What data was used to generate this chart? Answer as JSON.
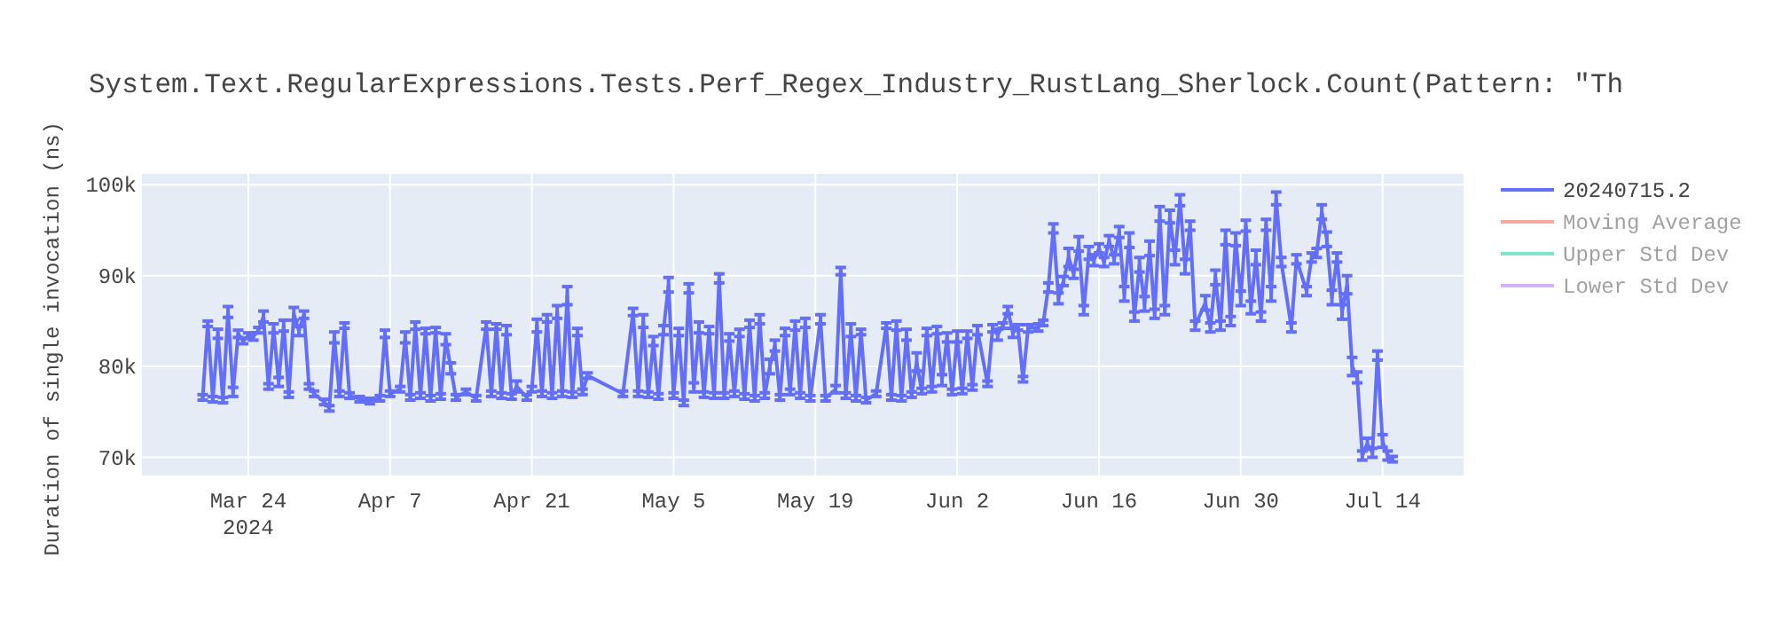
{
  "chart_data": {
    "type": "line",
    "title": "System.Text.RegularExpressions.Tests.Perf_Regex_Industry_RustLang_Sherlock.Count(Pattern: \"Th",
    "ylabel": "Duration of single invocation (ns)",
    "xlim": [
      "2024-03-13T12:00",
      "2024-07-22"
    ],
    "ylim": [
      68000,
      101200
    ],
    "xticks": [
      {
        "value": "2024-03-24",
        "label": "Mar 24\n2024"
      },
      {
        "value": "2024-04-07",
        "label": "Apr 7"
      },
      {
        "value": "2024-04-21",
        "label": "Apr 21"
      },
      {
        "value": "2024-05-05",
        "label": "May 5"
      },
      {
        "value": "2024-05-19",
        "label": "May 19"
      },
      {
        "value": "2024-06-02",
        "label": "Jun 2"
      },
      {
        "value": "2024-06-16",
        "label": "Jun 16"
      },
      {
        "value": "2024-06-30",
        "label": "Jun 30"
      },
      {
        "value": "2024-07-14",
        "label": "Jul 14"
      }
    ],
    "yticks": [
      {
        "value": 70000,
        "label": "70k"
      },
      {
        "value": 80000,
        "label": "80k"
      },
      {
        "value": 90000,
        "label": "90k"
      },
      {
        "value": 100000,
        "label": "100k"
      }
    ],
    "grid": true,
    "legend": "top right",
    "line_style": "solid",
    "series": [
      {
        "name": "20240715.2",
        "color": "#636efa",
        "x": [
          "2024-03-19T12:00",
          "2024-03-20T00:00",
          "2024-03-20T12:00",
          "2024-03-21T00:00",
          "2024-03-21T12:00",
          "2024-03-22T00:00",
          "2024-03-22T12:00",
          "2024-03-23T00:00",
          "2024-03-23T12:00",
          "2024-03-24T00:00",
          "2024-03-24T12:00",
          "2024-03-25T00:00",
          "2024-03-25T12:00",
          "2024-03-26T00:00",
          "2024-03-26T12:00",
          "2024-03-27T00:00",
          "2024-03-27T12:00",
          "2024-03-28T00:00",
          "2024-03-28T12:00",
          "2024-03-29T00:00",
          "2024-03-29T12:00",
          "2024-03-30T00:00",
          "2024-03-30T12:00",
          "2024-03-31T12:00",
          "2024-04-01T00:00",
          "2024-04-01T12:00",
          "2024-04-02T00:00",
          "2024-04-02T12:00",
          "2024-04-03T00:00",
          "2024-04-04T00:00",
          "2024-04-05T00:00",
          "2024-04-06T00:00",
          "2024-04-06T12:00",
          "2024-04-07T00:00",
          "2024-04-08T00:00",
          "2024-04-08T12:00",
          "2024-04-09T00:00",
          "2024-04-09T12:00",
          "2024-04-10T00:00",
          "2024-04-10T12:00",
          "2024-04-11T00:00",
          "2024-04-11T12:00",
          "2024-04-12T00:00",
          "2024-04-12T12:00",
          "2024-04-13T00:00",
          "2024-04-13T12:00",
          "2024-04-14T12:00",
          "2024-04-15T12:00",
          "2024-04-16T12:00",
          "2024-04-17T00:00",
          "2024-04-17T12:00",
          "2024-04-18T00:00",
          "2024-04-18T12:00",
          "2024-04-19T00:00",
          "2024-04-19T12:00",
          "2024-04-20T12:00",
          "2024-04-21T00:00",
          "2024-04-21T12:00",
          "2024-04-22T00:00",
          "2024-04-22T12:00",
          "2024-04-23T00:00",
          "2024-04-23T12:00",
          "2024-04-24T00:00",
          "2024-04-24T12:00",
          "2024-04-25T00:00",
          "2024-04-25T12:00",
          "2024-04-26T00:00",
          "2024-04-26T12:00",
          "2024-04-30T00:00",
          "2024-05-01T00:00",
          "2024-05-01T12:00",
          "2024-05-02T00:00",
          "2024-05-02T12:00",
          "2024-05-03T00:00",
          "2024-05-03T12:00",
          "2024-05-04T00:00",
          "2024-05-04T12:00",
          "2024-05-05T00:00",
          "2024-05-05T12:00",
          "2024-05-06T00:00",
          "2024-05-06T12:00",
          "2024-05-07T00:00",
          "2024-05-07T12:00",
          "2024-05-08T00:00",
          "2024-05-08T12:00",
          "2024-05-09T00:00",
          "2024-05-09T12:00",
          "2024-05-10T00:00",
          "2024-05-10T12:00",
          "2024-05-11T00:00",
          "2024-05-11T12:00",
          "2024-05-12T00:00",
          "2024-05-12T12:00",
          "2024-05-13T00:00",
          "2024-05-13T12:00",
          "2024-05-14T00:00",
          "2024-05-14T12:00",
          "2024-05-15T00:00",
          "2024-05-15T12:00",
          "2024-05-16T00:00",
          "2024-05-16T12:00",
          "2024-05-17T00:00",
          "2024-05-17T12:00",
          "2024-05-18T00:00",
          "2024-05-18T12:00",
          "2024-05-19T12:00",
          "2024-05-20T00:00",
          "2024-05-21T00:00",
          "2024-05-21T12:00",
          "2024-05-22T00:00",
          "2024-05-22T12:00",
          "2024-05-23T00:00",
          "2024-05-23T12:00",
          "2024-05-24T00:00",
          "2024-05-25T00:00",
          "2024-05-26T00:00",
          "2024-05-26T12:00",
          "2024-05-27T00:00",
          "2024-05-27T12:00",
          "2024-05-28T00:00",
          "2024-05-28T12:00",
          "2024-05-29T00:00",
          "2024-05-29T12:00",
          "2024-05-30T00:00",
          "2024-05-30T12:00",
          "2024-05-31T00:00",
          "2024-05-31T12:00",
          "2024-06-01T00:00",
          "2024-06-01T12:00",
          "2024-06-02T00:00",
          "2024-06-02T12:00",
          "2024-06-03T00:00",
          "2024-06-03T12:00",
          "2024-06-04T00:00",
          "2024-06-05T00:00",
          "2024-06-05T12:00",
          "2024-06-06T00:00",
          "2024-06-06T12:00",
          "2024-06-07T00:00",
          "2024-06-07T12:00",
          "2024-06-08T00:00",
          "2024-06-08T12:00",
          "2024-06-09T00:00",
          "2024-06-10T00:00",
          "2024-06-10T12:00",
          "2024-06-11T00:00",
          "2024-06-11T12:00",
          "2024-06-12T00:00",
          "2024-06-12T12:00",
          "2024-06-13T00:00",
          "2024-06-13T12:00",
          "2024-06-14T00:00",
          "2024-06-14T12:00",
          "2024-06-15T00:00",
          "2024-06-15T12:00",
          "2024-06-16T00:00",
          "2024-06-16T12:00",
          "2024-06-17T00:00",
          "2024-06-17T12:00",
          "2024-06-18T00:00",
          "2024-06-18T12:00",
          "2024-06-19T00:00",
          "2024-06-19T12:00",
          "2024-06-20T00:00",
          "2024-06-20T12:00",
          "2024-06-21T00:00",
          "2024-06-21T12:00",
          "2024-06-22T00:00",
          "2024-06-22T12:00",
          "2024-06-23T00:00",
          "2024-06-23T12:00",
          "2024-06-24T00:00",
          "2024-06-24T12:00",
          "2024-06-25T00:00",
          "2024-06-25T12:00",
          "2024-06-26T12:00",
          "2024-06-27T00:00",
          "2024-06-27T12:00",
          "2024-06-28T00:00",
          "2024-06-28T12:00",
          "2024-06-29T00:00",
          "2024-06-29T12:00",
          "2024-06-30T00:00",
          "2024-06-30T12:00",
          "2024-07-01T00:00",
          "2024-07-01T12:00",
          "2024-07-02T00:00",
          "2024-07-02T12:00",
          "2024-07-03T00:00",
          "2024-07-03T12:00",
          "2024-07-04T00:00",
          "2024-07-05T00:00",
          "2024-07-05T12:00",
          "2024-07-06T12:00",
          "2024-07-07T00:00",
          "2024-07-07T12:00",
          "2024-07-08T00:00",
          "2024-07-08T12:00",
          "2024-07-09T00:00",
          "2024-07-09T12:00",
          "2024-07-10T00:00",
          "2024-07-10T12:00",
          "2024-07-11T00:00",
          "2024-07-11T12:00",
          "2024-07-12T00:00",
          "2024-07-12T12:00",
          "2024-07-13T00:00",
          "2024-07-13T12:00",
          "2024-07-14T00:00",
          "2024-07-14T12:00",
          "2024-07-15T00:00"
        ],
        "values": [
          76600,
          84700,
          76400,
          83600,
          76300,
          86000,
          77200,
          83600,
          82800,
          83400,
          83300,
          84000,
          85500,
          77800,
          84200,
          78300,
          84500,
          76900,
          85800,
          83900,
          85700,
          77800,
          77000,
          76100,
          75400,
          83200,
          77000,
          84500,
          76800,
          76400,
          76200,
          76500,
          83600,
          77000,
          77500,
          83200,
          76600,
          84500,
          76800,
          83900,
          76500,
          84000,
          76700,
          83000,
          79800,
          76600,
          77200,
          76500,
          84500,
          77000,
          84400,
          76800,
          84000,
          76700,
          77800,
          76600,
          77500,
          84500,
          77000,
          85300,
          76800,
          86000,
          77000,
          87800,
          76900,
          83800,
          77200,
          79000,
          77000,
          86000,
          77000,
          85000,
          76900,
          82800,
          76700,
          84000,
          89000,
          76800,
          83800,
          76000,
          88600,
          77700,
          84300,
          76900,
          84000,
          76800,
          89700,
          76800,
          83200,
          77000,
          83700,
          76700,
          84700,
          76500,
          85200,
          76800,
          80000,
          82300,
          76600,
          83800,
          77200,
          84500,
          76800,
          84800,
          76500,
          85200,
          76500,
          77500,
          90500,
          76800,
          84000,
          76500,
          83800,
          76300,
          77000,
          84500,
          76600,
          84500,
          76500,
          83500,
          76900,
          80500,
          77300,
          83800,
          77500,
          84000,
          78500,
          83200,
          77200,
          83300,
          77300,
          83500,
          77700,
          84000,
          78100,
          84200,
          83500,
          84500,
          86200,
          83700,
          84300,
          78600,
          84200,
          84300,
          84800,
          88700,
          95200,
          87500,
          89400,
          92000,
          90200,
          93500,
          86200,
          92500,
          91700,
          93000,
          91500,
          93800,
          91800,
          94800,
          88000,
          93900,
          85500,
          91200,
          86900,
          93000,
          85800,
          96800,
          86200,
          96500,
          92000,
          98300,
          91000,
          95500,
          84500,
          87000,
          84300,
          89800,
          84500,
          94200,
          85000,
          94000,
          87500,
          95500,
          86500,
          92000,
          85500,
          95600,
          88000,
          98500,
          91500,
          84300,
          91800,
          88300,
          92000,
          92500,
          97000,
          94000,
          87600,
          92000,
          86000,
          89000,
          80000,
          78800,
          70200,
          71500,
          70500,
          81200,
          71800,
          70200,
          69800
        ],
        "errors": [
          300,
          300,
          300,
          500,
          300,
          600,
          500,
          400,
          300,
          300,
          400,
          300,
          600,
          300,
          500,
          500,
          600,
          300,
          700,
          500,
          400,
          300,
          300,
          300,
          300,
          600,
          300,
          300,
          300,
          300,
          300,
          300,
          400,
          300,
          300,
          600,
          300,
          400,
          300,
          300,
          300,
          300,
          300,
          600,
          600,
          300,
          300,
          300,
          400,
          300,
          300,
          300,
          500,
          300,
          600,
          300,
          300,
          700,
          300,
          400,
          300,
          700,
          300,
          1000,
          300,
          400,
          300,
          300,
          300,
          400,
          300,
          700,
          300,
          500,
          300,
          500,
          800,
          300,
          400,
          300,
          500,
          500,
          600,
          300,
          400,
          300,
          500,
          300,
          400,
          300,
          400,
          300,
          400,
          300,
          500,
          300,
          800,
          600,
          300,
          400,
          300,
          500,
          300,
          500,
          300,
          500,
          300,
          400,
          400,
          300,
          700,
          300,
          300,
          300,
          300,
          300,
          300,
          500,
          300,
          600,
          300,
          1000,
          300,
          400,
          300,
          400,
          600,
          500,
          300,
          600,
          300,
          400,
          300,
          500,
          300,
          400,
          600,
          300,
          400,
          500,
          300,
          300,
          400,
          400,
          300,
          500,
          500,
          600,
          500,
          1000,
          500,
          800,
          500,
          700,
          600,
          500,
          500,
          600,
          500,
          600,
          800,
          800,
          500,
          800,
          800,
          800,
          500,
          800,
          500,
          700,
          800,
          600,
          800,
          500,
          500,
          800,
          500,
          800,
          500,
          800,
          500,
          700,
          800,
          600,
          700,
          800,
          500,
          600,
          800,
          700,
          500,
          500,
          500,
          500,
          500,
          500,
          800,
          800,
          800,
          500,
          800,
          1000,
          1000,
          600,
          500,
          600,
          500,
          500,
          700,
          500,
          300
        ]
      },
      {
        "name": "Moving Average",
        "color": "#ef553b"
      },
      {
        "name": "Upper Std Dev",
        "color": "#00cc96"
      },
      {
        "name": "Lower Std Dev",
        "color": "#ab63fa"
      }
    ]
  }
}
